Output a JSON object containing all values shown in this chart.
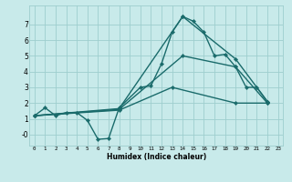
{
  "xlabel": "Humidex (Indice chaleur)",
  "xlim": [
    -0.5,
    23.5
  ],
  "ylim": [
    -0.7,
    8.2
  ],
  "yticks": [
    0,
    1,
    2,
    3,
    4,
    5,
    6,
    7
  ],
  "ytick_labels": [
    "-0",
    "1",
    "2",
    "3",
    "4",
    "5",
    "6",
    "7"
  ],
  "xticks": [
    0,
    1,
    2,
    3,
    4,
    5,
    6,
    7,
    8,
    9,
    10,
    11,
    12,
    13,
    14,
    15,
    16,
    17,
    18,
    19,
    20,
    21,
    22,
    23
  ],
  "bg_color": "#c8eaea",
  "grid_color": "#9ecece",
  "line_color": "#1a6b6b",
  "line_width": 1.0,
  "marker": "D",
  "marker_size": 2.2,
  "series_main": {
    "x": [
      0,
      1,
      2,
      3,
      4,
      5,
      6,
      7,
      8,
      10,
      11,
      12,
      13,
      14,
      15,
      16,
      17,
      18,
      19,
      20,
      21,
      22
    ],
    "y": [
      1.2,
      1.7,
      1.2,
      1.4,
      1.4,
      0.9,
      -0.3,
      -0.25,
      1.7,
      3.0,
      3.1,
      4.5,
      6.5,
      7.5,
      7.2,
      6.5,
      5.0,
      5.1,
      4.3,
      3.0,
      3.0,
      2.1
    ]
  },
  "series_lines": [
    {
      "x": [
        0,
        8,
        14,
        19,
        22
      ],
      "y": [
        1.2,
        1.65,
        7.5,
        4.8,
        2.1
      ]
    },
    {
      "x": [
        0,
        8,
        14,
        19,
        22
      ],
      "y": [
        1.2,
        1.6,
        5.0,
        4.3,
        2.0
      ]
    },
    {
      "x": [
        0,
        8,
        13,
        19,
        22
      ],
      "y": [
        1.2,
        1.55,
        3.0,
        2.0,
        2.0
      ]
    }
  ]
}
